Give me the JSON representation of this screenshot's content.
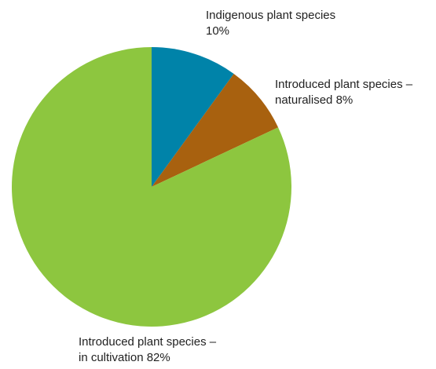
{
  "chart_data": {
    "type": "pie",
    "categories": [
      "Indigenous plant species",
      "Introduced plant species – naturalised",
      "Introduced plant species – in cultivation"
    ],
    "values": [
      10,
      8,
      82
    ],
    "value_labels": [
      "10%",
      "8%",
      "82%"
    ],
    "colors": [
      "#0083a9",
      "#a8610f",
      "#8dc63f"
    ]
  }
}
